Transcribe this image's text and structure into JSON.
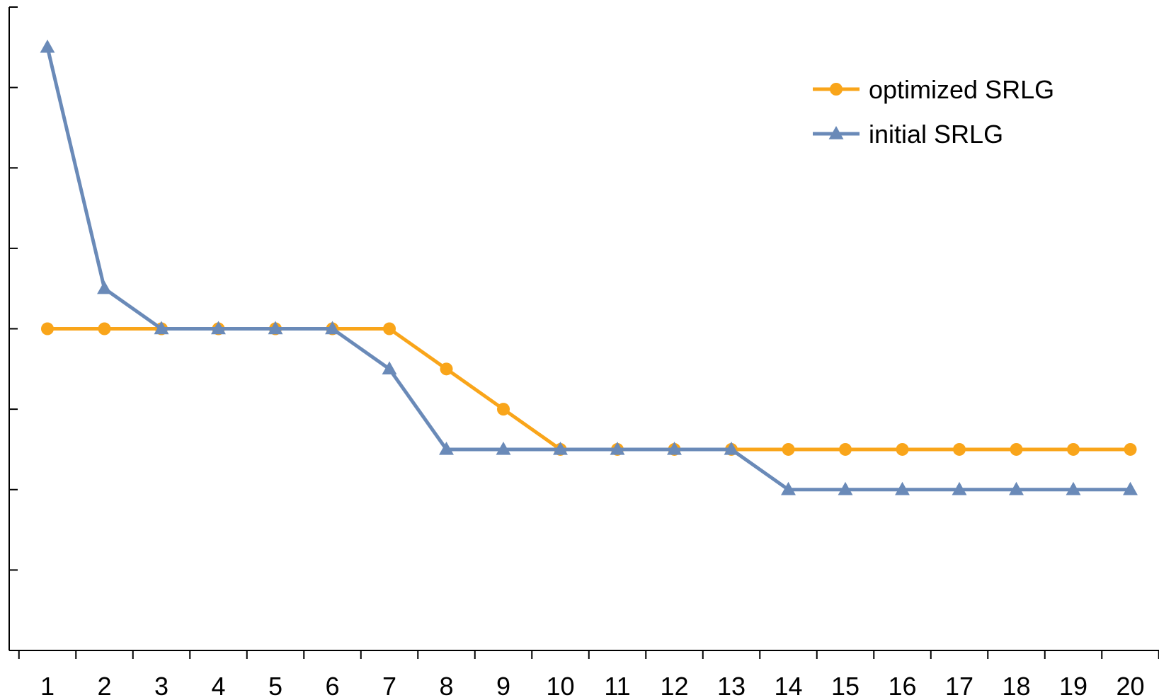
{
  "chart_data": {
    "type": "line",
    "title": "",
    "xlabel": "",
    "ylabel": "",
    "categories": [
      "1",
      "2",
      "3",
      "4",
      "5",
      "6",
      "7",
      "8",
      "9",
      "10",
      "11",
      "12",
      "13",
      "14",
      "15",
      "16",
      "17",
      "18",
      "19",
      "20"
    ],
    "ylim": [
      0,
      8
    ],
    "y_tick_labels_shown": false,
    "grid": false,
    "legend_position": "top-right",
    "series": [
      {
        "name": "optimized SRLG",
        "color": "#F9A51A",
        "marker": "circle",
        "values": [
          4,
          4,
          4,
          4,
          4,
          4,
          4,
          3.5,
          3,
          2.5,
          2.5,
          2.5,
          2.5,
          2.5,
          2.5,
          2.5,
          2.5,
          2.5,
          2.5,
          2.5
        ]
      },
      {
        "name": "initial SRLG",
        "color": "#6A8AB8",
        "marker": "triangle",
        "values": [
          7.5,
          4.5,
          4,
          4,
          4,
          4,
          3.5,
          2.5,
          2.5,
          2.5,
          2.5,
          2.5,
          2.5,
          2,
          2,
          2,
          2,
          2,
          2,
          2
        ]
      }
    ]
  }
}
